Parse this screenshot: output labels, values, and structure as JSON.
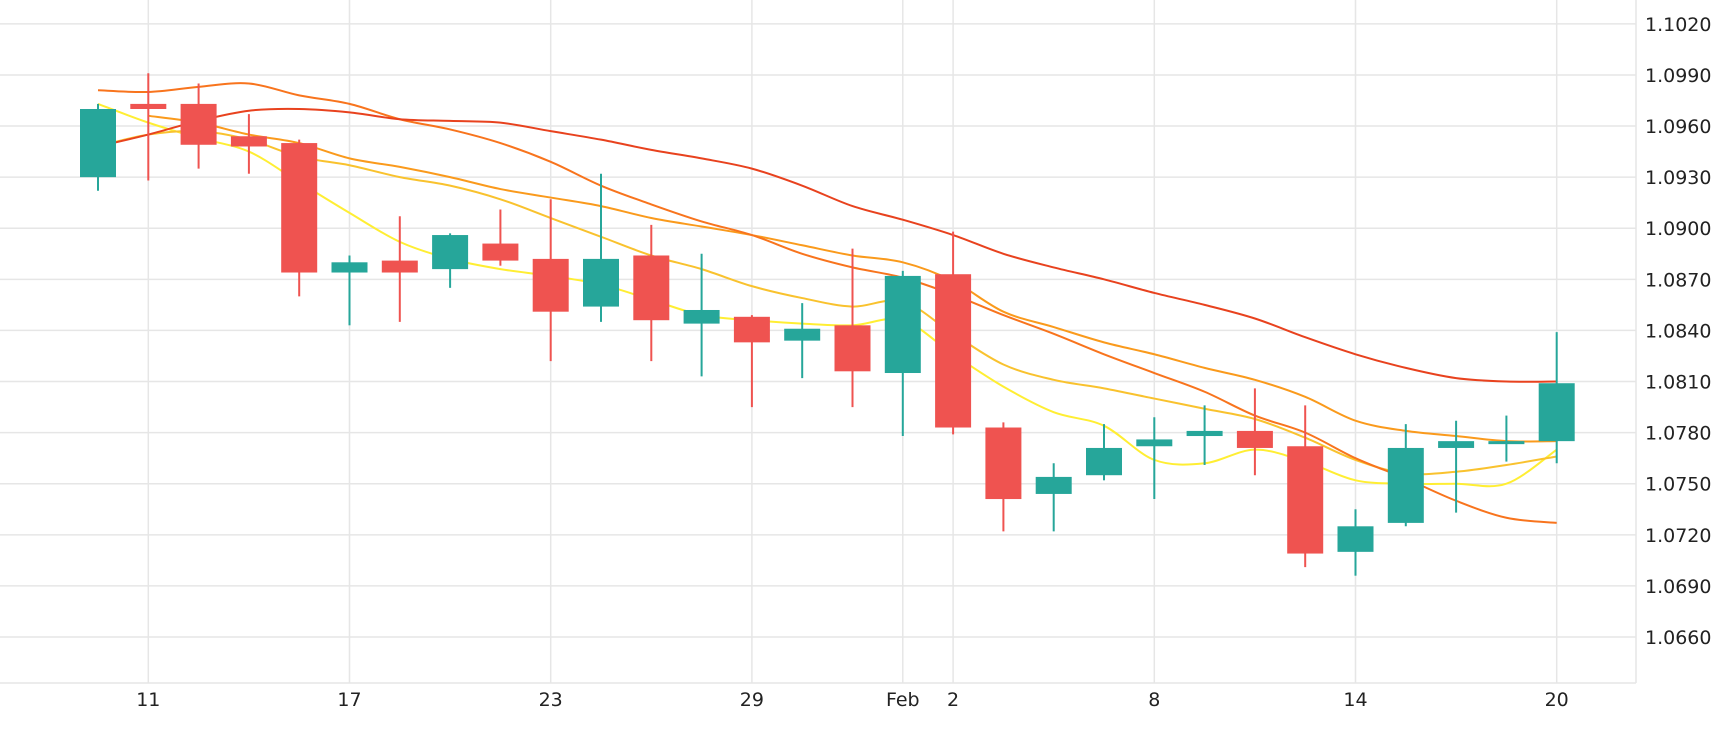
{
  "chart_data": {
    "type": "candlestick",
    "title": "",
    "xlabel": "",
    "ylabel": "",
    "ylim": [
      1.0633,
      1.1034
    ],
    "y_ticks": [
      "1.1020",
      "1.0990",
      "1.0960",
      "1.0930",
      "1.0900",
      "1.0870",
      "1.0840",
      "1.0810",
      "1.0780",
      "1.0750",
      "1.0720",
      "1.0690",
      "1.0660"
    ],
    "x_ticks": [
      {
        "label": "11",
        "day": 1
      },
      {
        "label": "17",
        "day": 5
      },
      {
        "label": "23",
        "day": 9
      },
      {
        "label": "29",
        "day": 13
      },
      {
        "label": "Feb",
        "day": 16
      },
      {
        "label": "2",
        "day": 17
      },
      {
        "label": "8",
        "day": 21
      },
      {
        "label": "14",
        "day": 25
      },
      {
        "label": "20",
        "day": 29
      }
    ],
    "grid": true,
    "colors": {
      "up": "#26a69a",
      "down": "#ef5350",
      "grid": "#e6e6e6",
      "ma": [
        "#ffee33",
        "#f9c22e",
        "#fa9a1c",
        "#f8741d",
        "#e8421e"
      ]
    },
    "candles": [
      {
        "day": 0,
        "open": 1.093,
        "high": 1.0973,
        "low": 1.0922,
        "close": 1.097
      },
      {
        "day": 1,
        "open": 1.0973,
        "high": 1.0991,
        "low": 1.0928,
        "close": 1.097
      },
      {
        "day": 2,
        "open": 1.0973,
        "high": 1.0985,
        "low": 1.0935,
        "close": 1.0949
      },
      {
        "day": 3,
        "open": 1.0954,
        "high": 1.0967,
        "low": 1.0932,
        "close": 1.0948
      },
      {
        "day": 4,
        "open": 1.095,
        "high": 1.0952,
        "low": 1.086,
        "close": 1.0874
      },
      {
        "day": 5,
        "open": 1.0874,
        "high": 1.0884,
        "low": 1.0843,
        "close": 1.088
      },
      {
        "day": 6,
        "open": 1.0881,
        "high": 1.0907,
        "low": 1.0845,
        "close": 1.0874
      },
      {
        "day": 7,
        "open": 1.0876,
        "high": 1.0897,
        "low": 1.0865,
        "close": 1.0896
      },
      {
        "day": 8,
        "open": 1.0891,
        "high": 1.0911,
        "low": 1.0878,
        "close": 1.0881
      },
      {
        "day": 9,
        "open": 1.0882,
        "high": 1.0917,
        "low": 1.0822,
        "close": 1.0851
      },
      {
        "day": 10,
        "open": 1.0854,
        "high": 1.0932,
        "low": 1.0845,
        "close": 1.0882
      },
      {
        "day": 11,
        "open": 1.0884,
        "high": 1.0902,
        "low": 1.0822,
        "close": 1.0846
      },
      {
        "day": 12,
        "open": 1.0844,
        "high": 1.0885,
        "low": 1.0813,
        "close": 1.0852
      },
      {
        "day": 13,
        "open": 1.0848,
        "high": 1.0849,
        "low": 1.0795,
        "close": 1.0833
      },
      {
        "day": 14,
        "open": 1.0834,
        "high": 1.0856,
        "low": 1.0812,
        "close": 1.0841
      },
      {
        "day": 15,
        "open": 1.0843,
        "high": 1.0888,
        "low": 1.0795,
        "close": 1.0816
      },
      {
        "day": 16,
        "open": 1.0815,
        "high": 1.0875,
        "low": 1.0778,
        "close": 1.0872
      },
      {
        "day": 17,
        "open": 1.0873,
        "high": 1.0898,
        "low": 1.0779,
        "close": 1.0783
      },
      {
        "day": 18,
        "open": 1.0783,
        "high": 1.0786,
        "low": 1.0722,
        "close": 1.0741
      },
      {
        "day": 19,
        "open": 1.0744,
        "high": 1.0762,
        "low": 1.0722,
        "close": 1.0754
      },
      {
        "day": 20,
        "open": 1.0755,
        "high": 1.0785,
        "low": 1.0752,
        "close": 1.0771
      },
      {
        "day": 21,
        "open": 1.0772,
        "high": 1.0789,
        "low": 1.0741,
        "close": 1.0776
      },
      {
        "day": 22,
        "open": 1.0778,
        "high": 1.0796,
        "low": 1.0761,
        "close": 1.0781
      },
      {
        "day": 23,
        "open": 1.0781,
        "high": 1.0806,
        "low": 1.0755,
        "close": 1.0771
      },
      {
        "day": 24,
        "open": 1.0772,
        "high": 1.0796,
        "low": 1.0701,
        "close": 1.0709
      },
      {
        "day": 25,
        "open": 1.071,
        "high": 1.0735,
        "low": 1.0696,
        "close": 1.0725
      },
      {
        "day": 26,
        "open": 1.0727,
        "high": 1.0785,
        "low": 1.0725,
        "close": 1.0771
      },
      {
        "day": 27,
        "open": 1.0771,
        "high": 1.0787,
        "low": 1.0733,
        "close": 1.0775
      },
      {
        "day": 28,
        "open": 1.0775,
        "high": 1.079,
        "low": 1.0763,
        "close": 1.0775
      },
      {
        "day": 29,
        "open": 1.0775,
        "high": 1.0839,
        "low": 1.0762,
        "close": 1.0809
      }
    ],
    "moving_averages": [
      {
        "days": [
          0,
          1,
          2,
          3,
          4,
          5,
          6,
          7,
          8,
          9,
          10,
          11,
          12,
          13,
          14,
          15,
          16,
          17,
          18,
          19,
          20,
          21,
          22,
          23,
          24,
          25,
          26,
          27,
          28,
          29
        ],
        "values": [
          1.0973,
          1.0962,
          1.0953,
          1.0945,
          1.0927,
          1.0909,
          1.0892,
          1.0882,
          1.0876,
          1.0872,
          1.0867,
          1.0858,
          1.0849,
          1.0846,
          1.0844,
          1.0843,
          1.0846,
          1.0826,
          1.0807,
          1.0792,
          1.0784,
          1.0764,
          1.0762,
          1.077,
          1.0763,
          1.0752,
          1.075,
          1.075,
          1.075,
          1.077
        ]
      },
      {
        "days": [
          0,
          1,
          2,
          3,
          4,
          5,
          6,
          7,
          8,
          9,
          10,
          11,
          12,
          13,
          14,
          15,
          16,
          17,
          18,
          19,
          20,
          21,
          22,
          23,
          24,
          25,
          26,
          27,
          28,
          29
        ],
        "values": [
          1.0948,
          1.0955,
          1.0957,
          1.0952,
          1.0942,
          1.0937,
          1.093,
          1.0925,
          1.0917,
          1.0906,
          1.0895,
          1.0884,
          1.0876,
          1.0866,
          1.0859,
          1.0854,
          1.0857,
          1.0838,
          1.082,
          1.0811,
          1.0806,
          1.08,
          1.0794,
          1.0788,
          1.0777,
          1.0764,
          1.0756,
          1.0757,
          1.0761,
          1.0766
        ]
      },
      {
        "days": [
          1,
          2,
          3,
          4,
          5,
          6,
          7,
          8,
          9,
          10,
          11,
          12,
          13,
          14,
          15,
          16,
          17,
          18,
          19,
          20,
          21,
          22,
          23,
          24,
          25,
          26,
          27,
          28,
          29
        ],
        "values": [
          1.0966,
          1.0962,
          1.0955,
          1.095,
          1.0941,
          1.0936,
          1.093,
          1.0923,
          1.0918,
          1.0913,
          1.0906,
          1.0901,
          1.0896,
          1.089,
          1.0884,
          1.088,
          1.0869,
          1.0851,
          1.0842,
          1.0833,
          1.0826,
          1.0818,
          1.0811,
          1.0801,
          1.0787,
          1.0781,
          1.0778,
          1.0775,
          1.0775
        ]
      },
      {
        "days": [
          0,
          1,
          2,
          3,
          4,
          5,
          6,
          7,
          8,
          9,
          10,
          11,
          12,
          13,
          14,
          15,
          16,
          17,
          18,
          19,
          20,
          21,
          22,
          23,
          24,
          25,
          26,
          27,
          28,
          29
        ],
        "values": [
          1.0981,
          1.098,
          1.0983,
          1.0985,
          1.0978,
          1.0973,
          1.0964,
          1.0958,
          1.095,
          1.0939,
          1.0925,
          1.0914,
          1.0904,
          1.0896,
          1.0885,
          1.0877,
          1.0871,
          1.0861,
          1.0849,
          1.0838,
          1.0826,
          1.0815,
          1.0804,
          1.079,
          1.078,
          1.0765,
          1.0753,
          1.074,
          1.073,
          1.0727
        ]
      },
      {
        "days": [
          0,
          1,
          2,
          3,
          4,
          5,
          6,
          7,
          8,
          9,
          10,
          11,
          12,
          13,
          14,
          15,
          16,
          17,
          18,
          19,
          20,
          21,
          22,
          23,
          24,
          25,
          26,
          27,
          28,
          29
        ],
        "values": [
          1.0948,
          1.0955,
          1.0963,
          1.0969,
          1.097,
          1.0968,
          1.0964,
          1.0963,
          1.0962,
          1.0957,
          1.0952,
          1.0946,
          1.0941,
          1.0935,
          1.0925,
          1.0913,
          1.0905,
          1.0896,
          1.0885,
          1.0877,
          1.087,
          1.0862,
          1.0855,
          1.0847,
          1.0836,
          1.0826,
          1.0818,
          1.0812,
          1.081,
          1.081
        ]
      }
    ]
  }
}
